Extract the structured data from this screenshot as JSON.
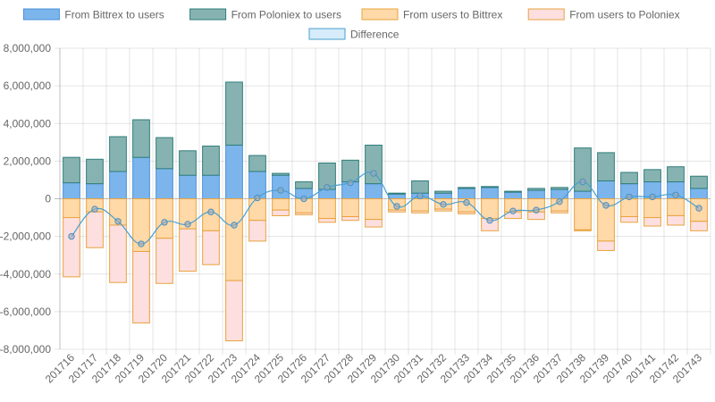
{
  "chart_data": {
    "type": "bar",
    "stacked": true,
    "title": "",
    "xlabel": "",
    "ylabel": "",
    "ylim": [
      -8000000,
      8000000
    ],
    "yticks": [
      8000000,
      6000000,
      4000000,
      2000000,
      0,
      -2000000,
      -4000000,
      -6000000,
      -8000000
    ],
    "ytick_labels": [
      "8,000,000",
      "6,000,000",
      "4,000,000",
      "2,000,000",
      "0",
      "-2,000,000",
      "-4,000,000",
      "-6,000,000",
      "-8,000,000"
    ],
    "grid": true,
    "legend_position": "top",
    "categories": [
      "201716",
      "201717",
      "201718",
      "201719",
      "201720",
      "201721",
      "201722",
      "201723",
      "201724",
      "201725",
      "201726",
      "201727",
      "201728",
      "201729",
      "201730",
      "201731",
      "201732",
      "201733",
      "201734",
      "201735",
      "201736",
      "201737",
      "201738",
      "201739",
      "201740",
      "201741",
      "201742",
      "201743"
    ],
    "series": [
      {
        "name": "From Bittrex to users",
        "kind": "bar",
        "color": "#7cb5ec",
        "border": "#4a90d9",
        "values": [
          850000,
          800000,
          1450000,
          2200000,
          1600000,
          1250000,
          1250000,
          2850000,
          1450000,
          1250000,
          550000,
          500000,
          900000,
          800000,
          250000,
          300000,
          300000,
          550000,
          600000,
          350000,
          450000,
          500000,
          400000,
          950000,
          800000,
          900000,
          900000,
          550000
        ]
      },
      {
        "name": "From Poloniex to users",
        "kind": "bar",
        "color": "#86b3b1",
        "border": "#2e7d7a",
        "values": [
          1350000,
          1300000,
          1850000,
          2000000,
          1650000,
          1300000,
          1550000,
          3350000,
          850000,
          100000,
          350000,
          1400000,
          1150000,
          2050000,
          50000,
          650000,
          100000,
          50000,
          50000,
          50000,
          100000,
          100000,
          2300000,
          1500000,
          600000,
          650000,
          800000,
          650000
        ]
      },
      {
        "name": "From users to Bittrex",
        "kind": "bar",
        "color": "#ffd9a8",
        "border": "#e8a33d",
        "values": [
          -1000000,
          -700000,
          -1400000,
          -2800000,
          -2100000,
          -1600000,
          -1700000,
          -4350000,
          -1150000,
          -600000,
          -750000,
          -1050000,
          -950000,
          -1100000,
          -600000,
          -650000,
          -550000,
          -700000,
          -1050000,
          -700000,
          -700000,
          -650000,
          -1650000,
          -2250000,
          -950000,
          -1000000,
          -900000,
          -1200000
        ]
      },
      {
        "name": "From users to Poloniex",
        "kind": "bar",
        "color": "#fddfe0",
        "border": "#e8a33d",
        "values": [
          -3150000,
          -1900000,
          -3050000,
          -3800000,
          -2400000,
          -2250000,
          -1800000,
          -3200000,
          -1100000,
          -300000,
          -100000,
          -200000,
          -200000,
          -400000,
          -100000,
          -100000,
          -100000,
          -100000,
          -650000,
          -350000,
          -400000,
          -100000,
          -50000,
          -500000,
          -300000,
          -450000,
          -500000,
          -500000
        ]
      },
      {
        "name": "Difference",
        "kind": "line",
        "color": "#d6ecfa",
        "border": "#4a9fd0",
        "values": [
          -2000000,
          -550000,
          -1200000,
          -2400000,
          -1250000,
          -1350000,
          -700000,
          -1400000,
          50000,
          450000,
          0,
          600000,
          850000,
          1350000,
          -400000,
          150000,
          -300000,
          -200000,
          -1150000,
          -650000,
          -600000,
          -150000,
          900000,
          -350000,
          100000,
          100000,
          200000,
          -500000
        ]
      }
    ]
  }
}
